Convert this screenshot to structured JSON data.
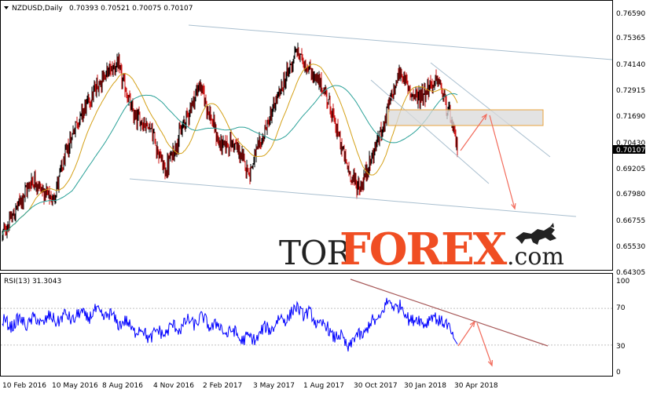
{
  "main_panel": {
    "symbol_label": "NZDUSD,Daily",
    "ohlc_values": "0.70393 0.70521 0.70075 0.70107",
    "current_price_label": "0.70107",
    "price_ticks": [
      "0.76590",
      "0.75365",
      "0.74140",
      "0.72915",
      "0.71690",
      "0.70430",
      "0.69205",
      "0.67980",
      "0.66755",
      "0.65530",
      "0.64305"
    ]
  },
  "rsi_panel": {
    "label": "RSI(13) 31.3043",
    "ticks": [
      "100",
      "70",
      "30",
      "0"
    ]
  },
  "x_axis": {
    "dates": [
      "10 Feb 2016",
      "10 May 2016",
      "8 Aug 2016",
      "4 Nov 2016",
      "2 Feb 2017",
      "3 May 2017",
      "1 Aug 2017",
      "30 Oct 2017",
      "30 Jan 2018",
      "30 Apr 2018"
    ]
  },
  "watermark": {
    "part1": "TOR",
    "part2": "FOREX",
    "part3": ".com"
  },
  "colors": {
    "bull_candle": "#000000",
    "bear_candle": "#cc1111",
    "ma_fast": "#d4a017",
    "ma_slow": "#2aa198",
    "channel_line": "#a9bfcf",
    "forecast_arrow": "#f26b5b",
    "rsi_line": "#0000ff",
    "rsi_trendline": "#a85a5a",
    "zone_fill": "#d9d9d9",
    "zone_border": "#e8a33d",
    "brand_dark": "#222222",
    "brand_accent": "#f04e23"
  },
  "chart_data": [
    {
      "type": "candlestick",
      "x_range": [
        "10 Feb 2016",
        "15 May 2018"
      ],
      "ylim": [
        0.64305,
        0.7659
      ],
      "last_close": 0.70107,
      "overlays": [
        "moving-average-fast",
        "moving-average-slow",
        "descending-channel",
        "resistance-zone",
        "forecast-arrows"
      ],
      "path": [
        {
          "date": "2016-02-10",
          "price": 0.66
        },
        {
          "date": "2016-04-05",
          "price": 0.687
        },
        {
          "date": "2016-05-10",
          "price": 0.676
        },
        {
          "date": "2016-06-20",
          "price": 0.712
        },
        {
          "date": "2016-08-08",
          "price": 0.735
        },
        {
          "date": "2016-09-05",
          "price": 0.742
        },
        {
          "date": "2016-10-05",
          "price": 0.717
        },
        {
          "date": "2016-11-04",
          "price": 0.712
        },
        {
          "date": "2016-12-01",
          "price": 0.69
        },
        {
          "date": "2017-01-10",
          "price": 0.717
        },
        {
          "date": "2017-02-02",
          "price": 0.732
        },
        {
          "date": "2017-03-10",
          "price": 0.703
        },
        {
          "date": "2017-04-05",
          "price": 0.704
        },
        {
          "date": "2017-05-03",
          "price": 0.69
        },
        {
          "date": "2017-06-15",
          "price": 0.72
        },
        {
          "date": "2017-07-27",
          "price": 0.748
        },
        {
          "date": "2017-09-20",
          "price": 0.727
        },
        {
          "date": "2017-10-30",
          "price": 0.69
        },
        {
          "date": "2017-11-20",
          "price": 0.682
        },
        {
          "date": "2017-12-31",
          "price": 0.712
        },
        {
          "date": "2018-01-30",
          "price": 0.738
        },
        {
          "date": "2018-02-28",
          "price": 0.725
        },
        {
          "date": "2018-04-10",
          "price": 0.734
        },
        {
          "date": "2018-04-30",
          "price": 0.718
        },
        {
          "date": "2018-05-15",
          "price": 0.701
        }
      ]
    },
    {
      "type": "line",
      "name": "RSI(13)",
      "ylim": [
        0,
        100
      ],
      "levels": [
        70,
        30
      ],
      "last_value": 31.3043,
      "path": [
        {
          "date": "2016-02-10",
          "value": 53
        },
        {
          "date": "2016-05-10",
          "value": 58
        },
        {
          "date": "2016-08-08",
          "value": 65
        },
        {
          "date": "2016-11-04",
          "value": 40
        },
        {
          "date": "2017-02-02",
          "value": 58
        },
        {
          "date": "2017-05-03",
          "value": 35
        },
        {
          "date": "2017-08-01",
          "value": 70
        },
        {
          "date": "2017-10-30",
          "value": 30
        },
        {
          "date": "2017-12-15",
          "value": 55
        },
        {
          "date": "2018-01-15",
          "value": 78
        },
        {
          "date": "2018-03-01",
          "value": 55
        },
        {
          "date": "2018-04-15",
          "value": 60
        },
        {
          "date": "2018-05-15",
          "value": 31
        }
      ]
    }
  ]
}
